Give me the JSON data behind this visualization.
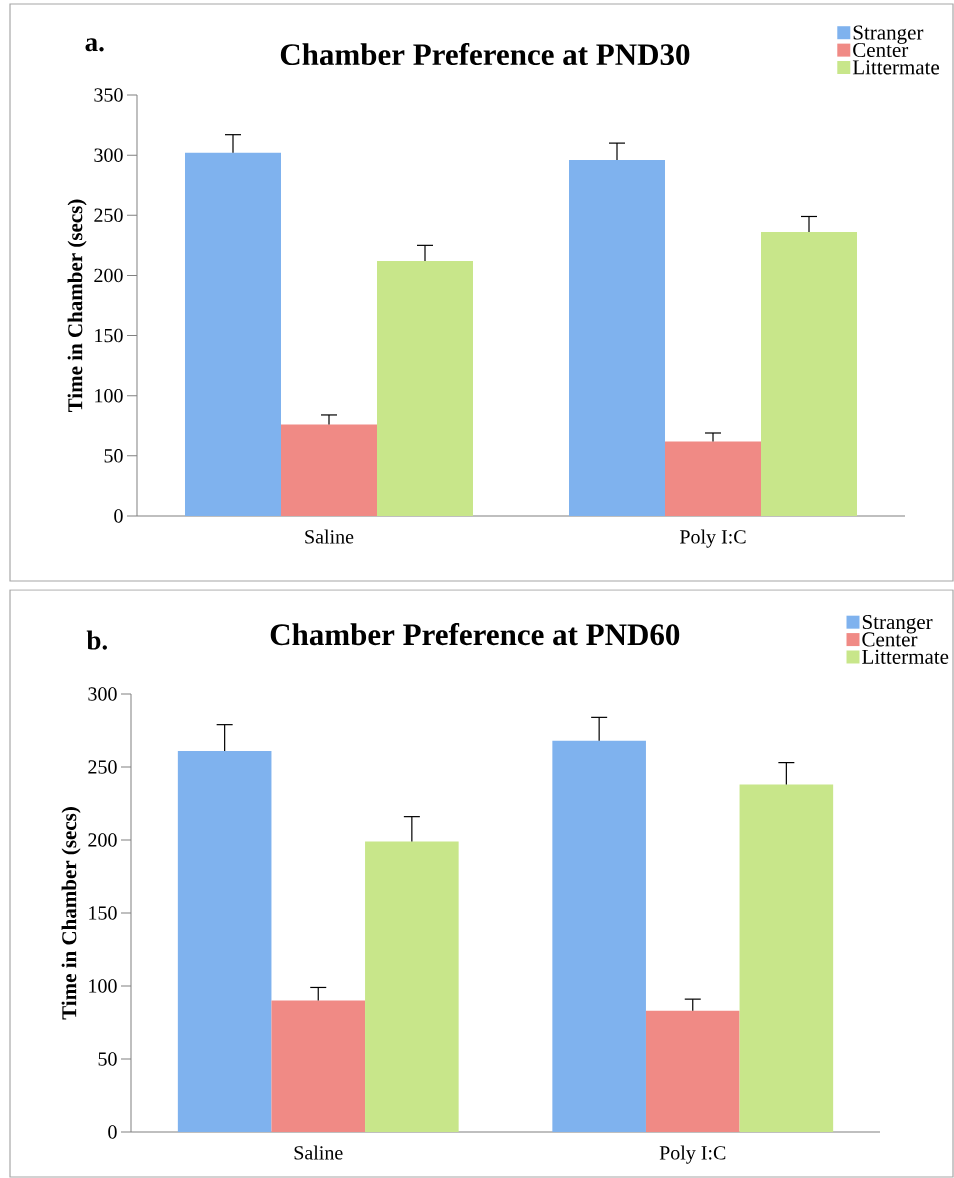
{
  "chart_data": [
    {
      "type": "bar",
      "title": "Chamber Preference at PND30",
      "annotations": [
        "a."
      ],
      "ylabel": "Time in Chamber (secs)",
      "categories": [
        "Saline",
        "Poly I:C"
      ],
      "series": [
        {
          "name": "Stranger",
          "color": "#7fb2ee",
          "values": [
            302,
            296
          ],
          "errors": [
            15,
            14
          ]
        },
        {
          "name": "Center",
          "color": "#f08a85",
          "values": [
            76,
            62
          ],
          "errors": [
            8,
            7
          ]
        },
        {
          "name": "Littermate",
          "color": "#c8e68a",
          "values": [
            212,
            236
          ],
          "errors": [
            13,
            13
          ]
        }
      ],
      "ylim": [
        0,
        350
      ],
      "yticks": [
        0,
        50,
        100,
        150,
        200,
        250,
        300,
        350
      ],
      "legend": "top right"
    },
    {
      "type": "bar",
      "title": "Chamber Preference at PND60",
      "annotations": [
        "b."
      ],
      "ylabel": "Time in Chamber (secs)",
      "categories": [
        "Saline",
        "Poly I:C"
      ],
      "series": [
        {
          "name": "Stranger",
          "color": "#7fb2ee",
          "values": [
            261,
            268
          ],
          "errors": [
            18,
            16
          ]
        },
        {
          "name": "Center",
          "color": "#f08a85",
          "values": [
            90,
            83
          ],
          "errors": [
            9,
            8
          ]
        },
        {
          "name": "Littermate",
          "color": "#c8e68a",
          "values": [
            199,
            238
          ],
          "errors": [
            17,
            15
          ]
        }
      ],
      "ylim": [
        0,
        300
      ],
      "yticks": [
        0,
        50,
        100,
        150,
        200,
        250,
        300
      ],
      "legend": "top right"
    }
  ]
}
